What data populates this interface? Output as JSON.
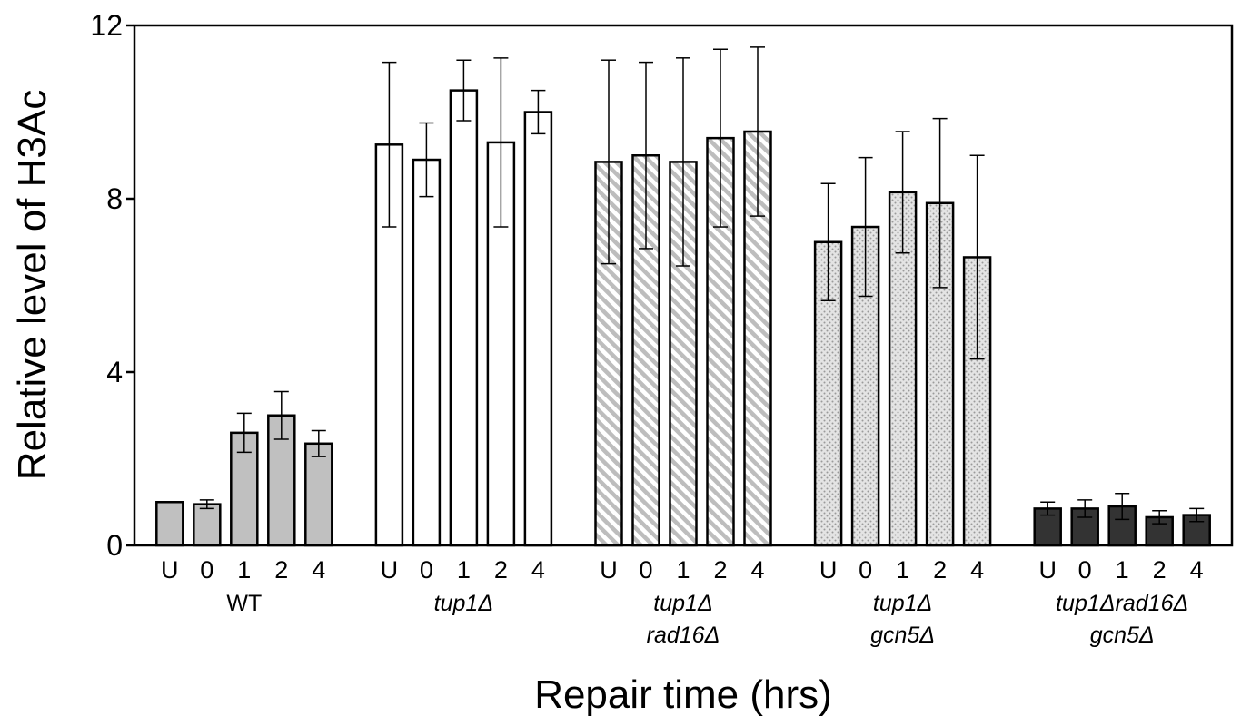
{
  "chart_data": {
    "type": "bar",
    "title": "",
    "xlabel": "Repair time (hrs)",
    "ylabel": "Relative level of H3Ac",
    "ylim": [
      0,
      12
    ],
    "yticks": [
      0,
      4,
      8,
      12
    ],
    "grid": false,
    "legend": "none",
    "categories": [
      "U",
      "0",
      "1",
      "2",
      "4"
    ],
    "groups": [
      {
        "name_lines": [
          "WT"
        ],
        "italic": false,
        "fill": "#c0c0c0",
        "pattern": "solid",
        "values": [
          1.0,
          0.95,
          2.6,
          3.0,
          2.35
        ],
        "errors": [
          0.0,
          0.1,
          0.45,
          0.55,
          0.3
        ]
      },
      {
        "name_lines": [
          "tup1Δ"
        ],
        "italic": true,
        "fill": "#ffffff",
        "pattern": "solid",
        "values": [
          9.25,
          8.9,
          10.5,
          9.3,
          10.0
        ],
        "errors": [
          1.9,
          0.85,
          0.7,
          1.95,
          0.5
        ]
      },
      {
        "name_lines": [
          "tup1Δ",
          "rad16Δ"
        ],
        "italic": true,
        "fill": "#c8c8c8",
        "pattern": "diagonal",
        "values": [
          8.85,
          9.0,
          8.85,
          9.4,
          9.55
        ],
        "errors": [
          2.35,
          2.15,
          2.4,
          2.05,
          1.95
        ]
      },
      {
        "name_lines": [
          "tup1Δ",
          "gcn5Δ"
        ],
        "italic": true,
        "fill": "#d0d0d0",
        "pattern": "dotted",
        "values": [
          7.0,
          7.35,
          8.15,
          7.9,
          6.65
        ],
        "errors": [
          1.35,
          1.6,
          1.4,
          1.95,
          2.35
        ]
      },
      {
        "name_lines": [
          "tup1Δrad16Δ",
          "gcn5Δ"
        ],
        "italic": true,
        "fill": "#333333",
        "pattern": "solid",
        "values": [
          0.85,
          0.85,
          0.9,
          0.65,
          0.7
        ],
        "errors": [
          0.15,
          0.2,
          0.3,
          0.15,
          0.15
        ]
      }
    ]
  }
}
